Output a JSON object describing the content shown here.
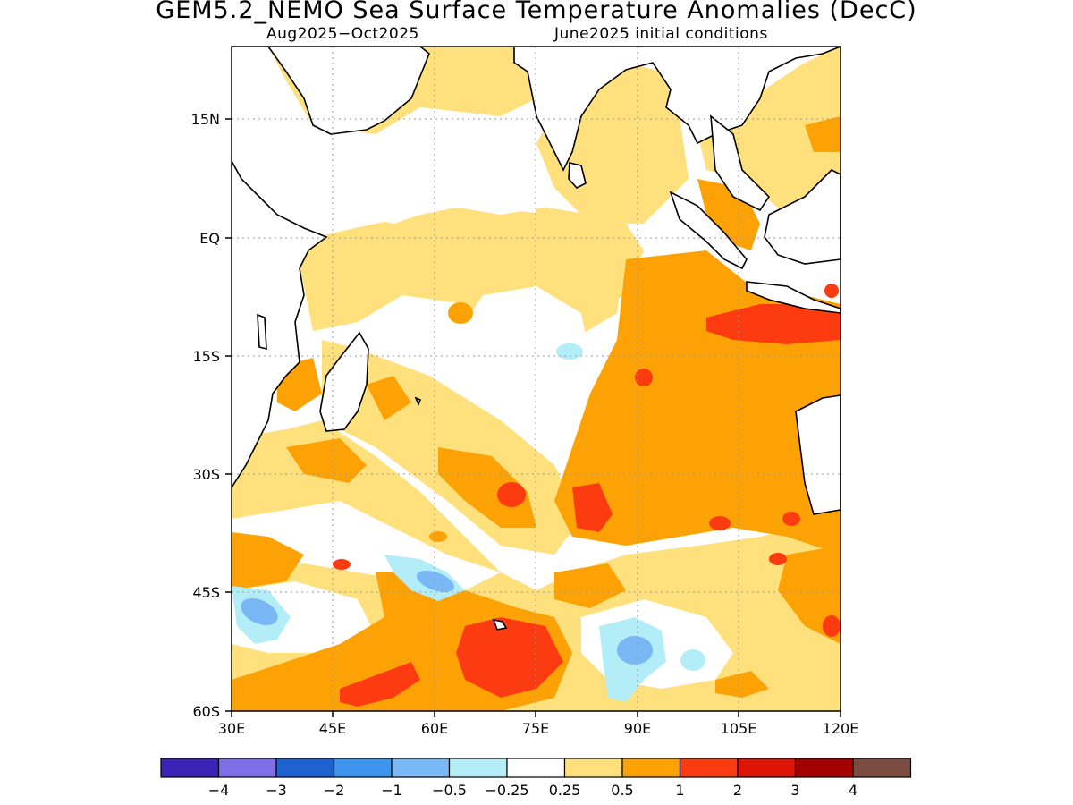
{
  "title": "GEM5.2_NEMO Sea Surface Temperature Anomalies (DecC)",
  "subtitle_left": "Aug2025−Oct2025",
  "subtitle_right": "June2025 initial conditions",
  "map": {
    "lon_range": [
      30,
      120
    ],
    "lat_range": [
      -60,
      24
    ],
    "lon_ticks": [
      "30E",
      "45E",
      "60E",
      "75E",
      "90E",
      "105E",
      "120E"
    ],
    "lat_ticks": [
      "15N",
      "EQ",
      "15S",
      "30S",
      "45S",
      "60S"
    ],
    "grid": "dotted"
  },
  "colorbar": {
    "colors": [
      "#3a23b6",
      "#7f6ee8",
      "#1e62d2",
      "#3e95ee",
      "#79b8f5",
      "#b3eef8",
      "#ffffff",
      "#fee07c",
      "#fda205",
      "#fd3b10",
      "#dd1506",
      "#a50000",
      "#7b4c3f"
    ],
    "labels": [
      "−4",
      "−3",
      "−2",
      "−1",
      "−0.5",
      "−0.25",
      "0.25",
      "0.5",
      "1",
      "2",
      "3",
      "4"
    ]
  }
}
